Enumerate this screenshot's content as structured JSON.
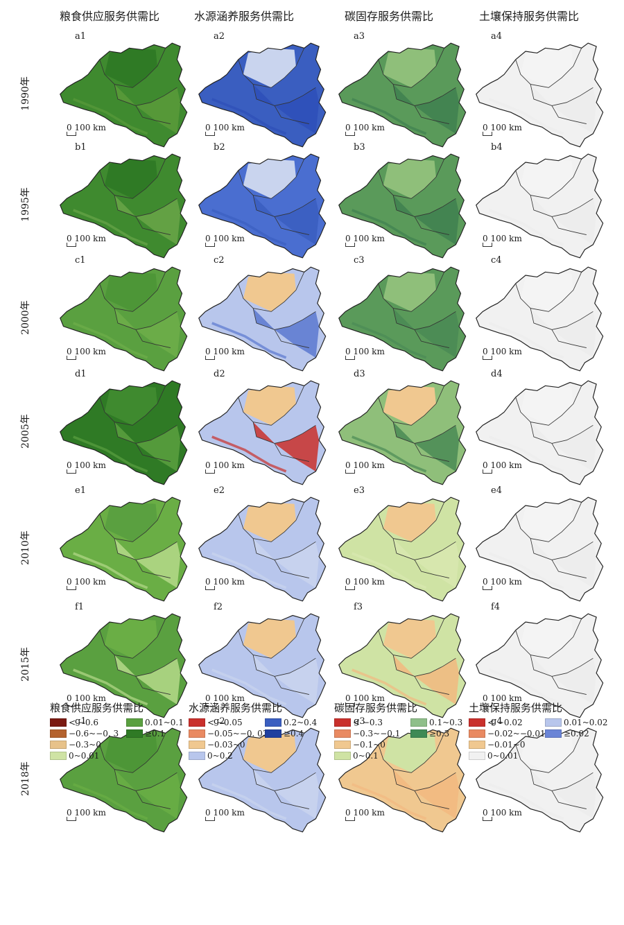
{
  "columns": [
    {
      "title": "粮食供应服务供需比",
      "prefix": "a"
    },
    {
      "title": "水源涵养服务供需比"
    },
    {
      "title": "碳固存服务供需比"
    },
    {
      "title": "土壤保持服务供需比"
    }
  ],
  "years": [
    "1990年",
    "1995年",
    "2000年",
    "2005年",
    "2010年",
    "2015年",
    "2018年"
  ],
  "panel_labels": [
    [
      "a1",
      "a2",
      "a3",
      "a4"
    ],
    [
      "b1",
      "b2",
      "b3",
      "b4"
    ],
    [
      "c1",
      "c2",
      "c3",
      "c4"
    ],
    [
      "d1",
      "d2",
      "d3",
      "d4"
    ],
    [
      "e1",
      "e2",
      "e3",
      "e4"
    ],
    [
      "f1",
      "f2",
      "f3",
      "f4"
    ],
    [
      "g1",
      "g2",
      "g3",
      "g4"
    ]
  ],
  "scale_bar": {
    "zero": "0",
    "text": "100 km"
  },
  "panel_fills": [
    [
      [
        "#3f8a2f",
        "#2f7a25",
        "#5a9a3a"
      ],
      [
        "#3a5ec0",
        "#c9d4ee",
        "#2e4fb8"
      ],
      [
        "#5a9a5a",
        "#8fbf7a",
        "#3f8050"
      ],
      [
        "#f1f1f1",
        "#f4f4f4",
        "#ececec"
      ]
    ],
    [
      [
        "#3f8a2f",
        "#2f7a25",
        "#6aa548"
      ],
      [
        "#4a6ed0",
        "#c9d4ee",
        "#3a5ec0"
      ],
      [
        "#5a9a5a",
        "#8fbf7a",
        "#3f8050"
      ],
      [
        "#f1f1f1",
        "#f4f4f4",
        "#ececec"
      ]
    ],
    [
      [
        "#5aa040",
        "#4d9637",
        "#6eae4a"
      ],
      [
        "#b8c6ec",
        "#f0c890",
        "#5a78d0"
      ],
      [
        "#5a9a5a",
        "#8fbf7a",
        "#4a8a55"
      ],
      [
        "#f1f1f1",
        "#f4f4f4",
        "#ececec"
      ]
    ],
    [
      [
        "#2f7a25",
        "#3f8a2f",
        "#5aa040"
      ],
      [
        "#b8c6ec",
        "#f0c890",
        "#c9302c"
      ],
      [
        "#8fbf7a",
        "#f0c890",
        "#4a8a55"
      ],
      [
        "#f1f1f1",
        "#f4f4f4",
        "#ececec"
      ]
    ],
    [
      [
        "#6aae45",
        "#5aa040",
        "#b5d98a"
      ],
      [
        "#b8c6ec",
        "#f0c890",
        "#c9d4ee"
      ],
      [
        "#cfe3a4",
        "#f0c890",
        "#d8e8b0"
      ],
      [
        "#f1f1f1",
        "#f4f4f4",
        "#ececec"
      ]
    ],
    [
      [
        "#5aa040",
        "#6aae45",
        "#b5d98a"
      ],
      [
        "#b8c6ec",
        "#f0c890",
        "#c9d4ee"
      ],
      [
        "#cfe3a4",
        "#f0c890",
        "#f2b880"
      ],
      [
        "#f1f1f1",
        "#f4f4f4",
        "#ececec"
      ]
    ],
    [
      [
        "#5aa040",
        "#4d9637",
        "#6aae45"
      ],
      [
        "#b8c6ec",
        "#f0c890",
        "#c9d4ee"
      ],
      [
        "#f0c890",
        "#cfe3a4",
        "#f2b880"
      ],
      [
        "#f1f1f1",
        "#f4f4f4",
        "#ececec"
      ]
    ]
  ],
  "legends": [
    {
      "title": "粮食供应服务供需比",
      "items": [
        {
          "label": "< −0.6",
          "color": "#7a1a12"
        },
        {
          "label": "−0.6~−0. 3",
          "color": "#b4622e"
        },
        {
          "label": "−0.3~0",
          "color": "#e7c28a"
        },
        {
          "label": "0~0.01",
          "color": "#cfe3a4"
        },
        {
          "label": "0.01~0.1",
          "color": "#5aa040"
        },
        {
          "label": "≥0.1",
          "color": "#2f7a25"
        }
      ]
    },
    {
      "title": "水源涵养服务供需比",
      "items": [
        {
          "label": "< −0.05",
          "color": "#c9302c"
        },
        {
          "label": "−0.05~−0. 03",
          "color": "#e98a62"
        },
        {
          "label": "−0.03~0",
          "color": "#f0c890"
        },
        {
          "label": "0~0.2",
          "color": "#b8c6ec"
        },
        {
          "label": "0.2~0.4",
          "color": "#3a5ec0"
        },
        {
          "label": "≥0.4",
          "color": "#1f3f9f"
        }
      ]
    },
    {
      "title": "碳固存服务供需比",
      "items": [
        {
          "label": "< −0.3",
          "color": "#c9302c"
        },
        {
          "label": "−0.3~−0.1",
          "color": "#e98a62"
        },
        {
          "label": "−0.1~0",
          "color": "#f0c890"
        },
        {
          "label": "0~0.1",
          "color": "#cfe3a4"
        },
        {
          "label": "0.1~0.3",
          "color": "#8fbf8a"
        },
        {
          "label": "≥0.3",
          "color": "#3f8a55"
        }
      ]
    },
    {
      "title": "土壤保持服务供需比",
      "items": [
        {
          "label": "< −0.02",
          "color": "#c9302c"
        },
        {
          "label": "−0.02~−0.01",
          "color": "#e98a62"
        },
        {
          "label": "−0.01~0",
          "color": "#f0c890"
        },
        {
          "label": "0~0.01",
          "color": "#f1f1f1"
        },
        {
          "label": "0.01~0.02",
          "color": "#b8c6ec"
        },
        {
          "label": "≥0.02",
          "color": "#6a84d6"
        }
      ]
    }
  ]
}
